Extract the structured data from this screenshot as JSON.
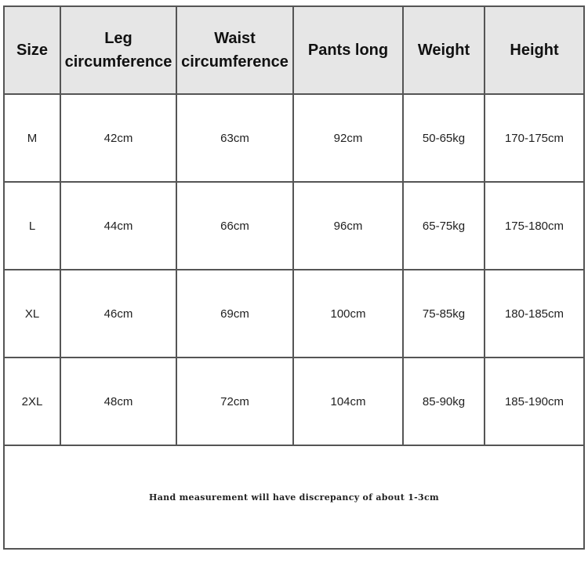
{
  "headers": [
    "Size",
    "Leg circumference",
    "Waist circumference",
    "Pants long",
    "Weight",
    "Height"
  ],
  "rows": [
    [
      "M",
      "42cm",
      "63cm",
      "92cm",
      "50-65kg",
      "170-175cm"
    ],
    [
      "L",
      "44cm",
      "66cm",
      "96cm",
      "65-75kg",
      "175-180cm"
    ],
    [
      "XL",
      "46cm",
      "69cm",
      "100cm",
      "75-85kg",
      "180-185cm"
    ],
    [
      "2XL",
      "48cm",
      "72cm",
      "104cm",
      "85-90kg",
      "185-190cm"
    ]
  ],
  "note": "Hand measurement will have discrepancy of about 1-3cm"
}
